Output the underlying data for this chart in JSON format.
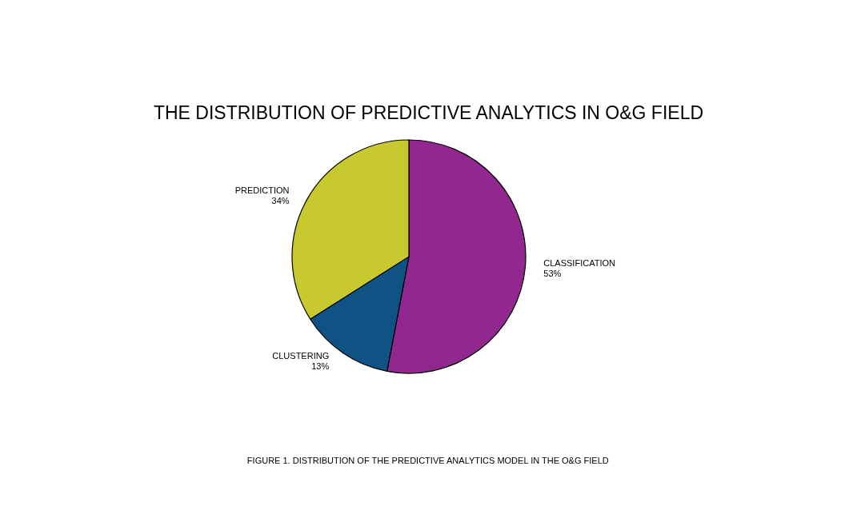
{
  "chart_data": {
    "type": "pie",
    "title": "THE DISTRIBUTION OF PREDICTIVE ANALYTICS IN O&G FIELD",
    "categories": [
      "CLASSIFICATION",
      "CLUSTERING",
      "PREDICTION"
    ],
    "values": [
      53,
      13,
      34
    ],
    "value_labels": [
      "53%",
      "13%",
      "34%"
    ],
    "colors": [
      "#92278f",
      "#0f5384",
      "#c8c92e"
    ],
    "legend": false,
    "annotations": [
      "FIGURE 1. DISTRIBUTION OF THE PREDICTIVE ANALYTICS MODEL IN THE O&G FIELD"
    ]
  }
}
